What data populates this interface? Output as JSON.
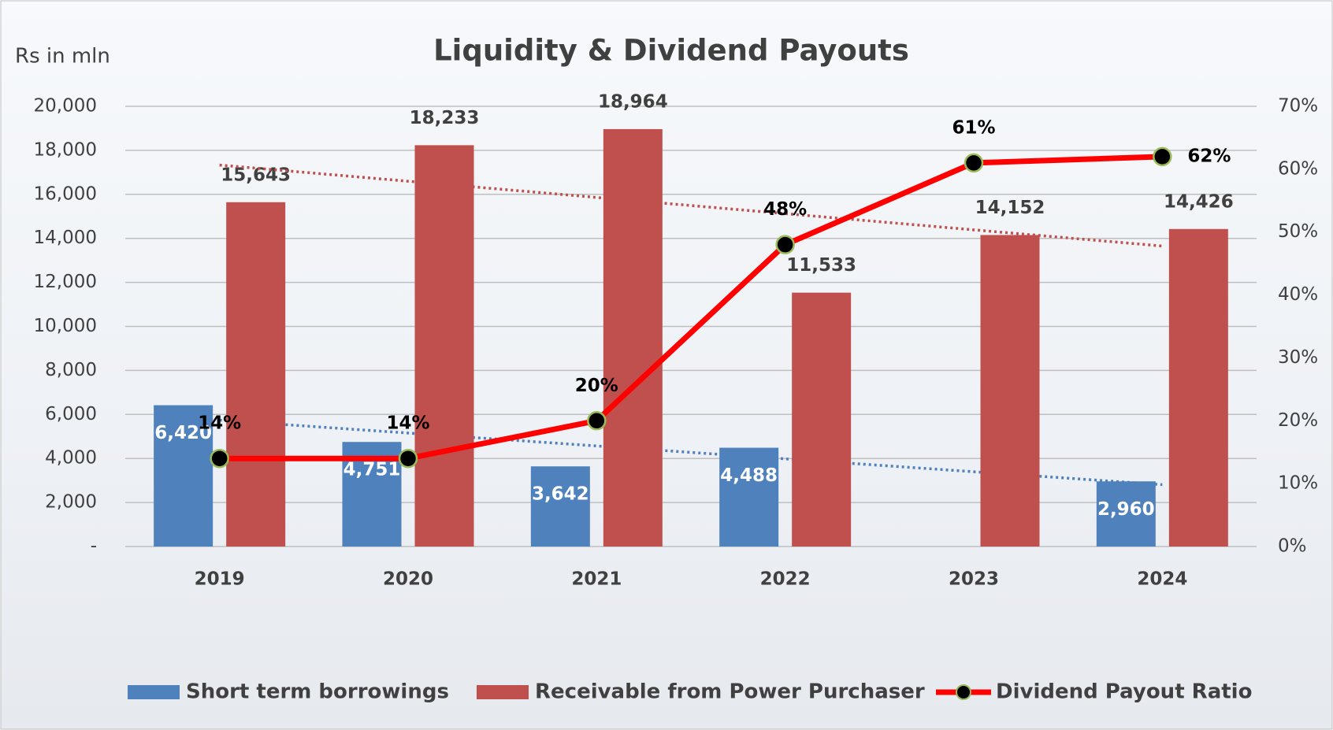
{
  "chart_data": {
    "type": "bar-line",
    "title": "Liquidity  & Dividend Payouts",
    "y_label": "Rs in mln",
    "categories": [
      "2019",
      "2020",
      "2021",
      "2022",
      "2023",
      "2024"
    ],
    "series": [
      {
        "name": "Short term borrowings",
        "color": "#4f81bd",
        "type": "bar",
        "trendline": true,
        "values": [
          6420,
          4751,
          3642,
          4488,
          null,
          2960
        ],
        "value_labels": [
          "6,420",
          "4,751",
          "3,642",
          "4,488",
          null,
          "2,960"
        ]
      },
      {
        "name": "Receivable from Power Purchaser",
        "color": "#c0504d",
        "type": "bar",
        "trendline": true,
        "values": [
          15643,
          18233,
          18964,
          11533,
          14152,
          14426
        ],
        "value_labels": [
          "15,643",
          "18,233",
          "18,964",
          "11,533",
          "14,152",
          "14,426"
        ]
      },
      {
        "name": "Dividend Payout Ratio",
        "color": "#ff0000",
        "type": "line",
        "axis": "y2",
        "values": [
          14,
          14,
          20,
          48,
          61,
          62
        ],
        "value_labels": [
          "14%",
          "14%",
          "20%",
          "48%",
          "61%",
          "62%"
        ]
      }
    ],
    "ylim": [
      0,
      20000
    ],
    "yticks": [
      {
        "value": 0,
        "label": "-"
      },
      {
        "value": 2000,
        "label": "2,000"
      },
      {
        "value": 4000,
        "label": "4,000"
      },
      {
        "value": 6000,
        "label": "6,000"
      },
      {
        "value": 8000,
        "label": "8,000"
      },
      {
        "value": 10000,
        "label": "10,000"
      },
      {
        "value": 12000,
        "label": "12,000"
      },
      {
        "value": 14000,
        "label": "14,000"
      },
      {
        "value": 16000,
        "label": "16,000"
      },
      {
        "value": 18000,
        "label": "18,000"
      },
      {
        "value": 20000,
        "label": "20,000"
      }
    ],
    "y2lim": [
      0,
      70
    ],
    "y2ticks": [
      {
        "value": 0,
        "label": "0%"
      },
      {
        "value": 10,
        "label": "10%"
      },
      {
        "value": 20,
        "label": "20%"
      },
      {
        "value": 30,
        "label": "30%"
      },
      {
        "value": 40,
        "label": "40%"
      },
      {
        "value": 50,
        "label": "50%"
      },
      {
        "value": 60,
        "label": "60%"
      },
      {
        "value": 70,
        "label": "70%"
      }
    ],
    "grid": true,
    "legend": "bottom"
  }
}
